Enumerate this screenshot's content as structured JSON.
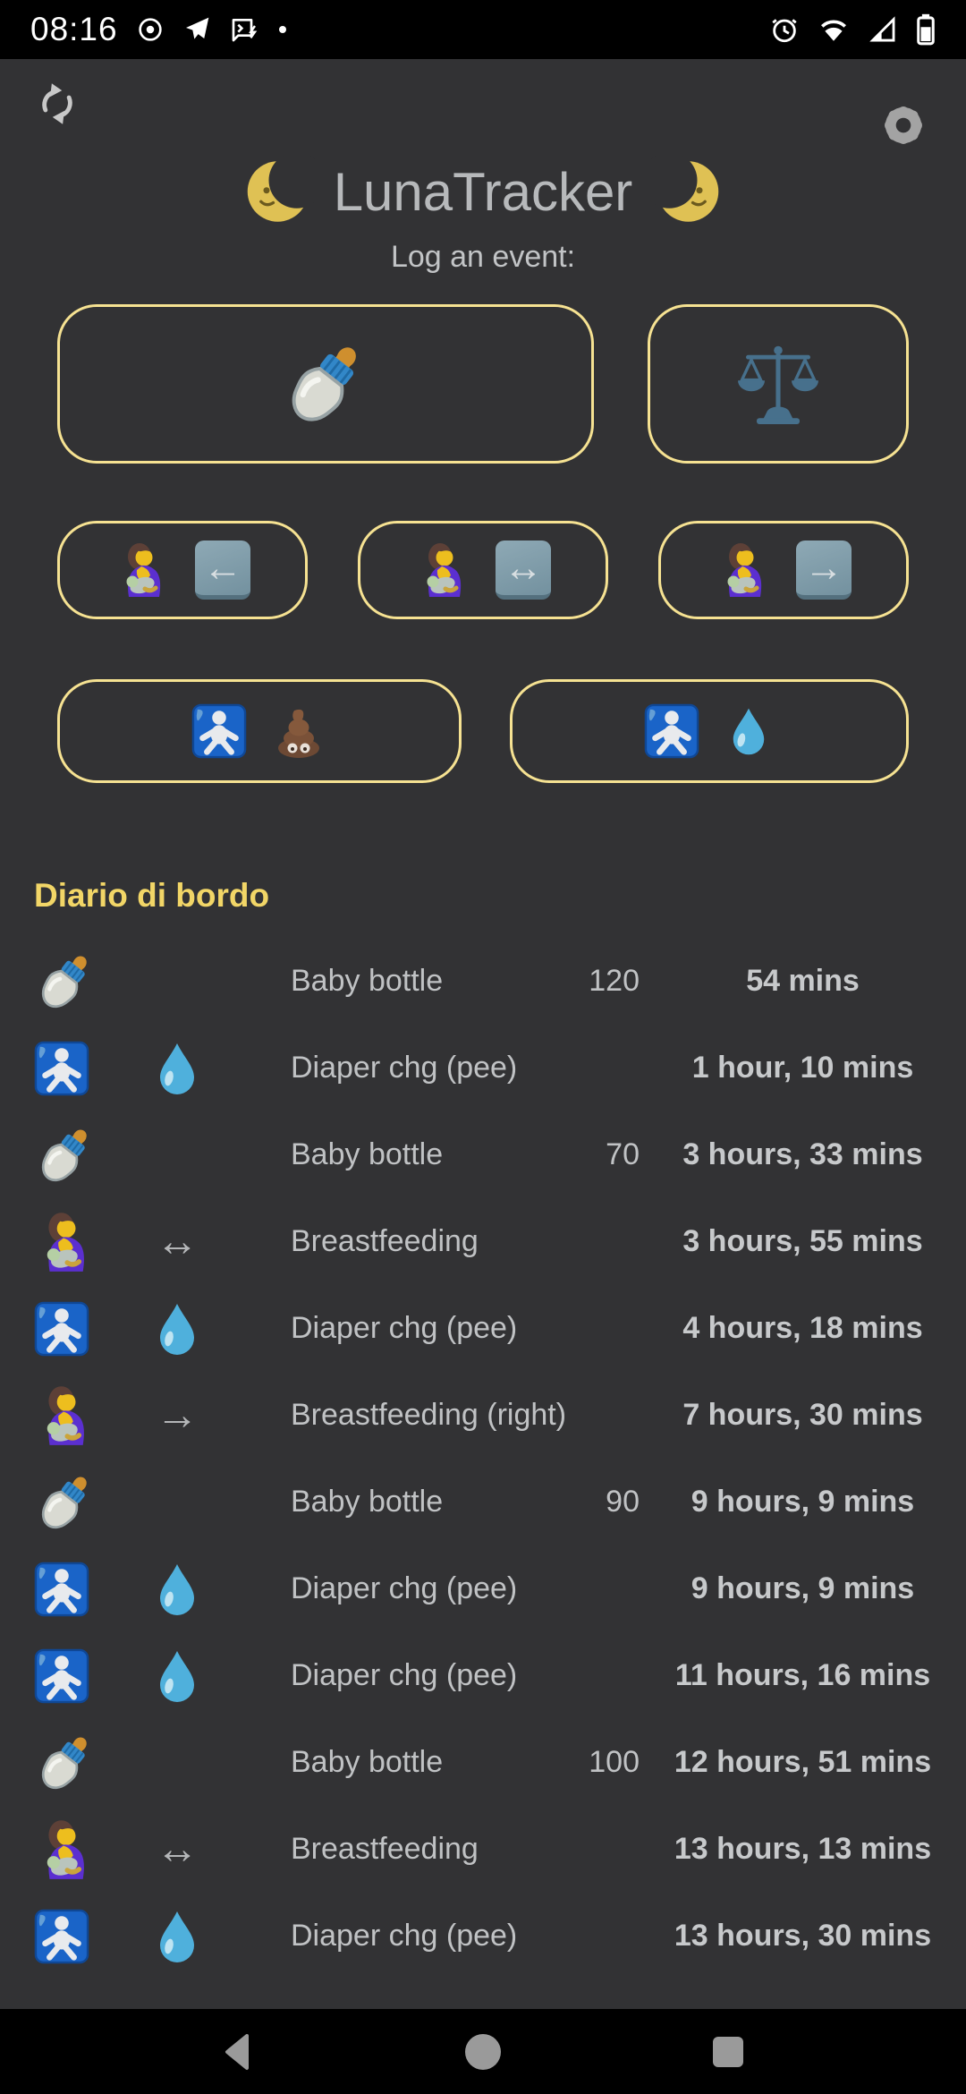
{
  "status_bar": {
    "time": "08:16",
    "left_icons": [
      "record-icon",
      "telegram-icon",
      "sms-icon",
      "notification-dot-icon"
    ],
    "right_icons": [
      "alarm-icon",
      "wifi-icon",
      "signal-icon",
      "battery-icon"
    ]
  },
  "header": {
    "title": "LunaTracker",
    "moon_left_icon": "last-quarter-moon-face",
    "moon_right_icon": "first-quarter-moon-face",
    "subtitle": "Log an event:",
    "refresh_icon": "sync-arrows",
    "settings_icon": "gear"
  },
  "event_buttons": [
    {
      "name": "log-bottle-button",
      "icons": [
        "bottle"
      ]
    },
    {
      "name": "log-weight-button",
      "icons": [
        "scales"
      ]
    },
    {
      "name": "breastfeed-left-button",
      "icons": [
        "breastfeeding",
        "arrow-left-btn"
      ]
    },
    {
      "name": "breastfeed-both-button",
      "icons": [
        "breastfeeding",
        "arrow-both-btn"
      ]
    },
    {
      "name": "breastfeed-right-button",
      "icons": [
        "breastfeeding",
        "arrow-right-btn"
      ]
    },
    {
      "name": "diaper-poo-button",
      "icons": [
        "baby-sign",
        "poop"
      ]
    },
    {
      "name": "diaper-pee-button",
      "icons": [
        "baby-sign",
        "droplet"
      ]
    }
  ],
  "log": {
    "heading": "Diario di bordo",
    "rows": [
      {
        "icons": [
          "bottle"
        ],
        "label": "Baby bottle",
        "amount": "120",
        "time": "54 mins"
      },
      {
        "icons": [
          "baby-sign",
          "droplet"
        ],
        "label": "Diaper chg (pee)",
        "amount": "",
        "time": "1 hour, 10 mins"
      },
      {
        "icons": [
          "bottle"
        ],
        "label": "Baby bottle",
        "amount": "70",
        "time": "3 hours, 33 mins"
      },
      {
        "icons": [
          "breastfeeding",
          "arrow-both"
        ],
        "label": "Breastfeeding",
        "amount": "",
        "time": "3 hours, 55 mins"
      },
      {
        "icons": [
          "baby-sign",
          "droplet"
        ],
        "label": "Diaper chg (pee)",
        "amount": "",
        "time": "4 hours, 18 mins"
      },
      {
        "icons": [
          "breastfeeding",
          "arrow-right"
        ],
        "label": "Breastfeeding (right)",
        "amount": "",
        "time": "7 hours, 30 mins"
      },
      {
        "icons": [
          "bottle"
        ],
        "label": "Baby bottle",
        "amount": "90",
        "time": "9 hours, 9 mins"
      },
      {
        "icons": [
          "baby-sign",
          "droplet"
        ],
        "label": "Diaper chg (pee)",
        "amount": "",
        "time": "9 hours, 9 mins"
      },
      {
        "icons": [
          "baby-sign",
          "droplet"
        ],
        "label": "Diaper chg (pee)",
        "amount": "",
        "time": "11 hours, 16 mins"
      },
      {
        "icons": [
          "bottle"
        ],
        "label": "Baby bottle",
        "amount": "100",
        "time": "12 hours, 51 mins"
      },
      {
        "icons": [
          "breastfeeding",
          "arrow-both"
        ],
        "label": "Breastfeeding",
        "amount": "",
        "time": "13 hours, 13 mins"
      },
      {
        "icons": [
          "baby-sign",
          "droplet"
        ],
        "label": "Diaper chg (pee)",
        "amount": "",
        "time": "13 hours, 30 mins"
      }
    ]
  },
  "nav_bar": {
    "icons": [
      "back-icon",
      "home-icon",
      "recents-icon"
    ]
  },
  "colors": {
    "background": "#323234",
    "status_bar": "#000000",
    "button_outline_yellow": "#f6e292",
    "heading_yellow": "#f2d667",
    "text_gray": "#c0c2c4",
    "baby_sign_blue": "#1a64c8",
    "droplet_blue": "#4fb0dc"
  }
}
